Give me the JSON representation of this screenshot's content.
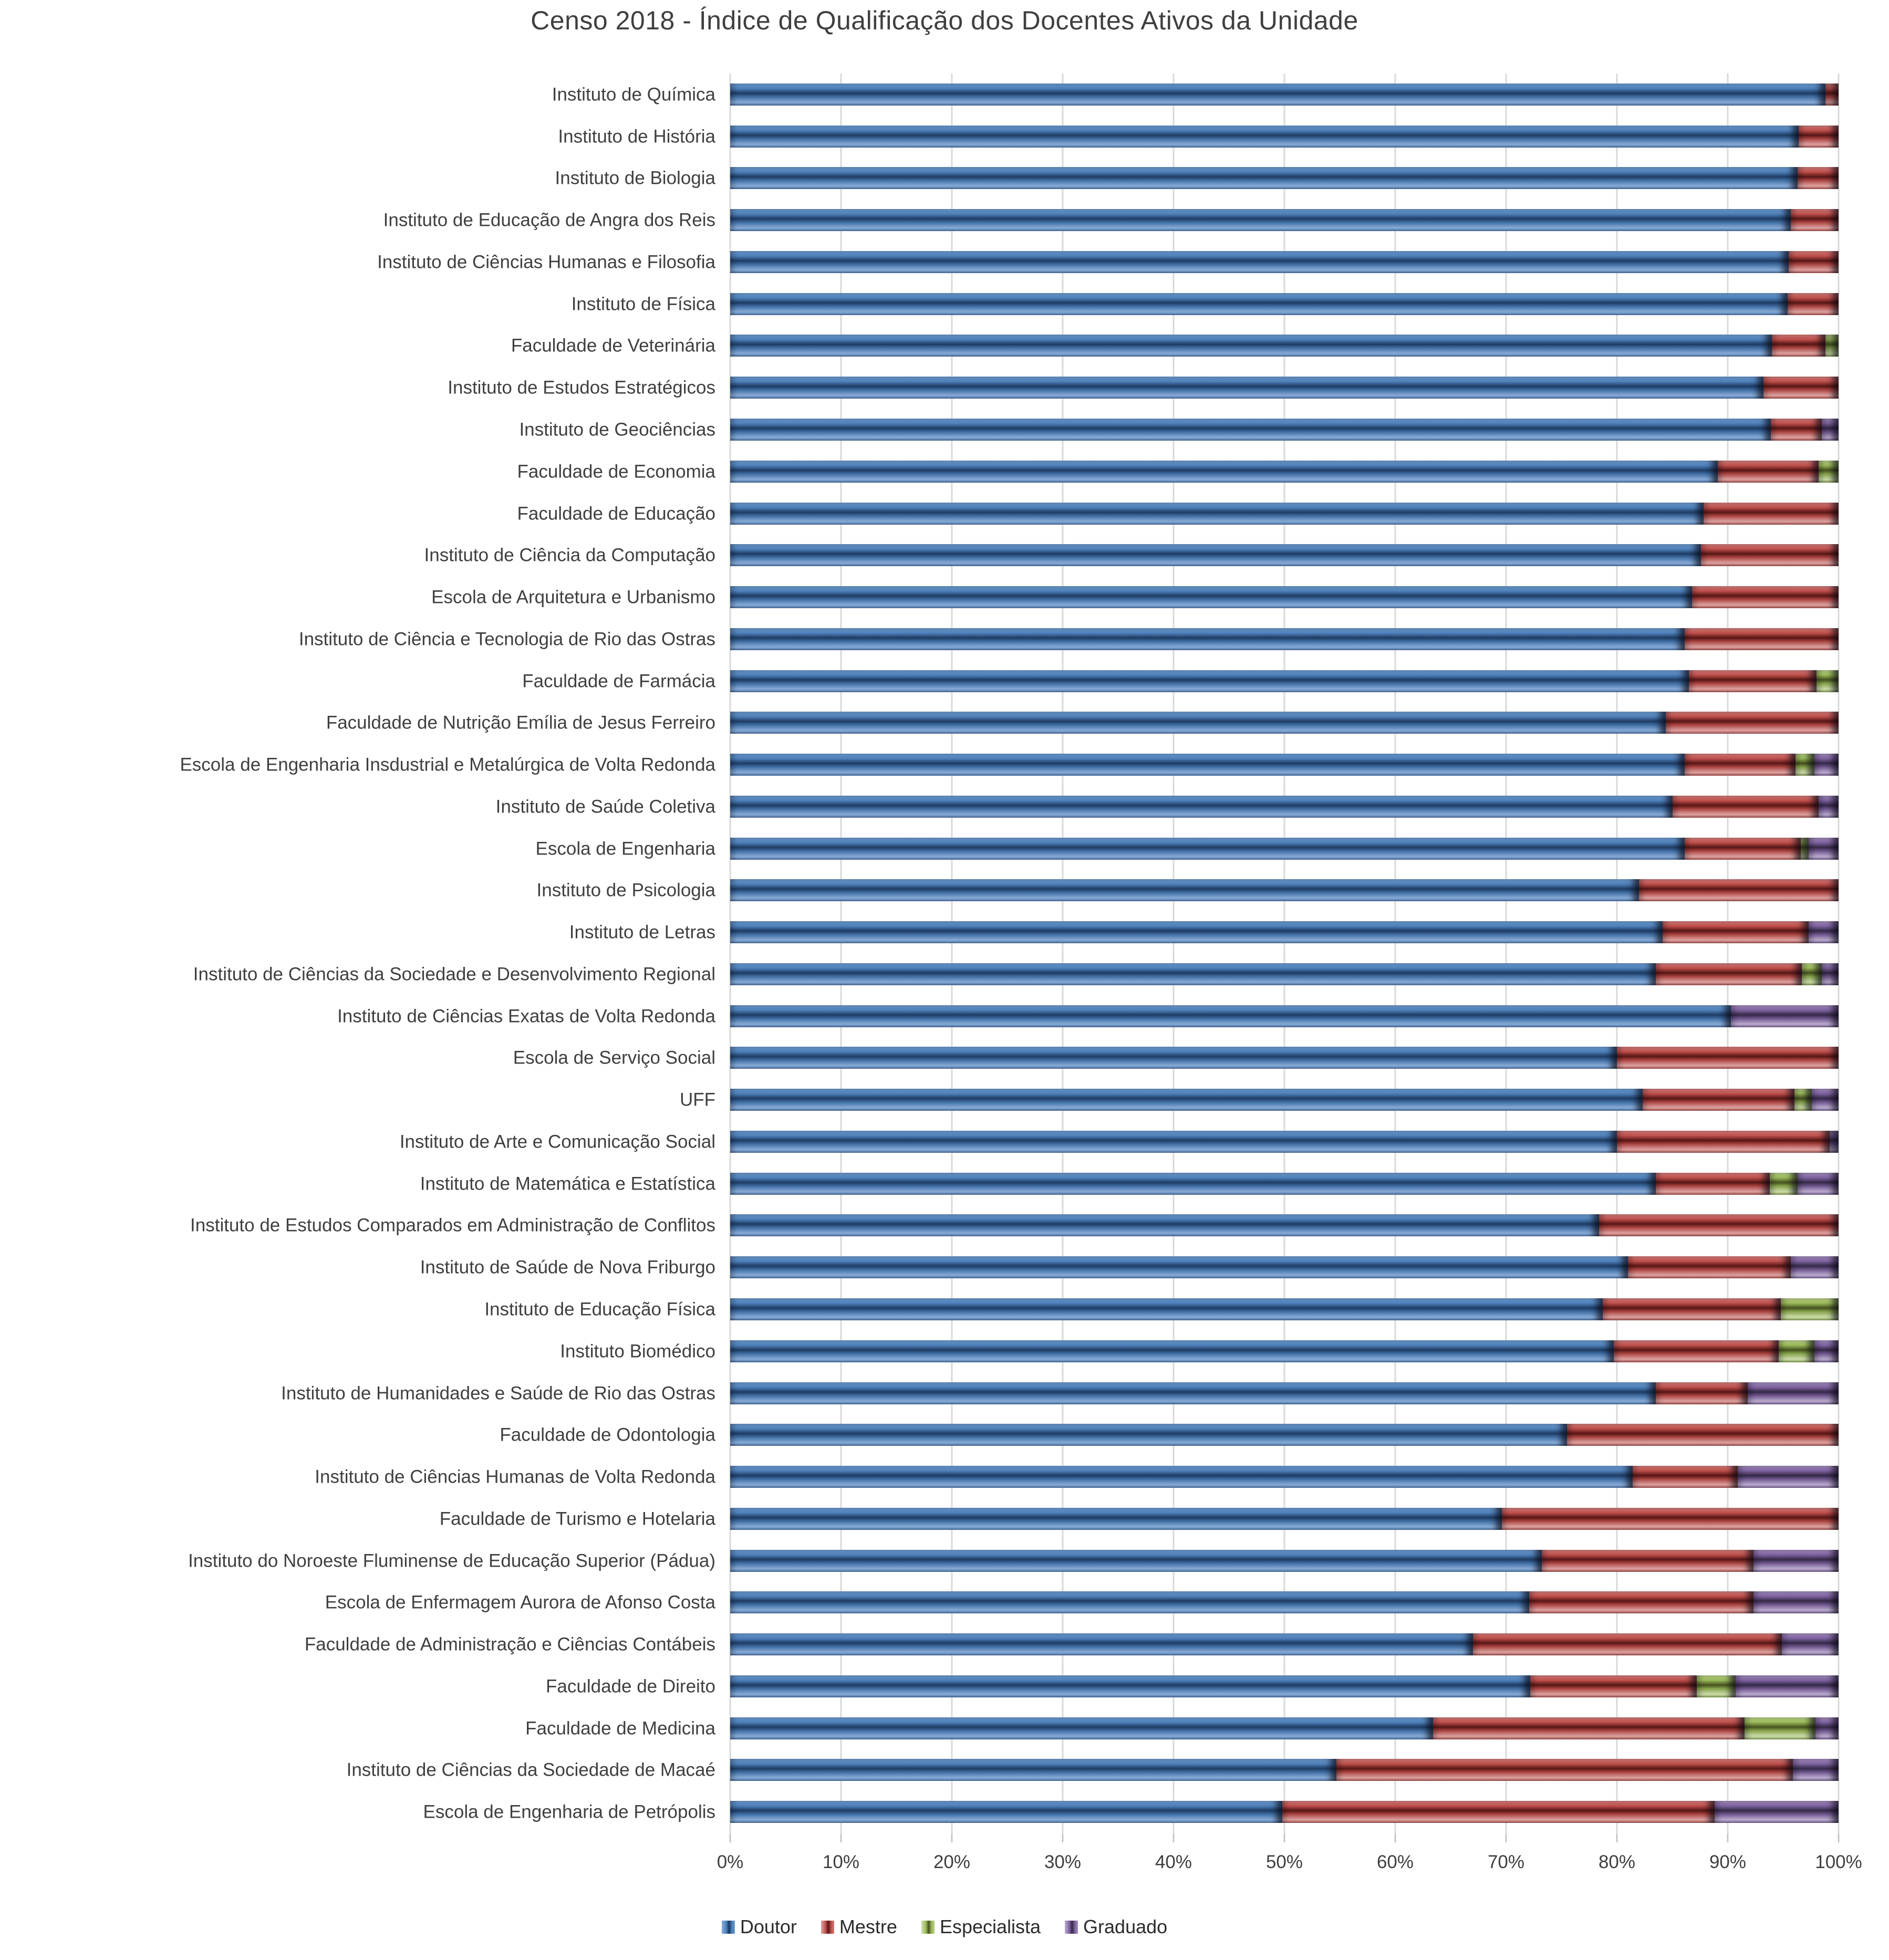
{
  "title": "Censo 2018 - Índice de Qualificação dos Docentes Ativos da Unidade",
  "colors": {
    "doutor": "#4F81BD",
    "mestre": "#C0504D",
    "especialista": "#9BBB59",
    "graduado": "#8064A2",
    "gridline": "#D9D9D9",
    "text": "#3F3F3F",
    "background": "#FFFFFF"
  },
  "axis": {
    "min": 0,
    "max": 100,
    "tick_labels": [
      "0%",
      "10%",
      "20%",
      "30%",
      "40%",
      "50%",
      "60%",
      "70%",
      "80%",
      "90%",
      "100%"
    ]
  },
  "legend": [
    {
      "label": "Doutor",
      "color": "#4F81BD"
    },
    {
      "label": "Mestre",
      "color": "#C0504D"
    },
    {
      "label": "Especialista",
      "color": "#9BBB59"
    },
    {
      "label": "Graduado",
      "color": "#8064A2"
    }
  ],
  "chart_data": {
    "type": "bar",
    "stacked": true,
    "orientation": "horizontal",
    "title": "Censo 2018 - Índice de Qualificação dos Docentes Ativos da Unidade",
    "xlabel": "",
    "ylabel": "",
    "xlim": [
      0,
      100
    ],
    "x_tick_labels": [
      "0%",
      "10%",
      "20%",
      "30%",
      "40%",
      "50%",
      "60%",
      "70%",
      "80%",
      "90%",
      "100%"
    ],
    "grid": true,
    "legend_position": "bottom",
    "units": "percent",
    "categories": [
      "Instituto de Química",
      "Instituto de História",
      "Instituto de Biologia",
      "Instituto de Educação de Angra dos Reis",
      "Instituto de Ciências Humanas e Filosofia",
      "Instituto de Física",
      "Faculdade de Veterinária",
      "Instituto de Estudos Estratégicos",
      "Instituto de Geociências",
      "Faculdade de Economia",
      "Faculdade de Educação",
      "Instituto de Ciência da Computação",
      "Escola de Arquitetura e Urbanismo",
      "Instituto de Ciência e Tecnologia de Rio das Ostras",
      "Faculdade de Farmácia",
      "Faculdade de Nutrição Emília de Jesus Ferreiro",
      "Escola de Engenharia Insdustrial e Metalúrgica de Volta Redonda",
      "Instituto de Saúde Coletiva",
      "Escola de Engenharia",
      "Instituto de Psicologia",
      "Instituto de Letras",
      "Instituto de Ciências da Sociedade e Desenvolvimento Regional",
      "Instituto de Ciências Exatas de Volta Redonda",
      "Escola de Serviço Social",
      "UFF",
      "Instituto de Arte e Comunicação Social",
      "Instituto de Matemática e Estatística",
      "Instituto de Estudos Comparados em Administração de Conflitos",
      "Instituto de Saúde de Nova Friburgo",
      "Instituto de Educação Física",
      "Instituto Biomédico",
      "Instituto de Humanidades e Saúde de Rio das Ostras",
      "Faculdade de Odontologia",
      "Instituto de Ciências Humanas de Volta Redonda",
      "Faculdade de Turismo e Hotelaria",
      "Instituto do Noroeste Fluminense de Educação Superior (Pádua)",
      "Escola de Enfermagem Aurora de Afonso Costa",
      "Faculdade de Administração e Ciências Contábeis",
      "Faculdade de Direito",
      "Faculdade de Medicina",
      "Instituto de Ciências da Sociedade de Macaé",
      "Escola de Engenharia de Petrópolis"
    ],
    "series": [
      {
        "name": "Doutor",
        "color": "#4F81BD",
        "values": [
          98.8,
          96.4,
          96.3,
          95.7,
          95.5,
          95.4,
          94.0,
          93.2,
          93.9,
          89.1,
          87.8,
          87.6,
          86.8,
          86.1,
          86.5,
          84.4,
          86.1,
          85.0,
          86.1,
          82.0,
          84.1,
          83.5,
          90.3,
          80.0,
          82.3,
          80.0,
          83.5,
          78.4,
          81.0,
          78.7,
          79.7,
          83.5,
          75.5,
          81.4,
          69.6,
          73.2,
          72.1,
          67.0,
          72.2,
          63.4,
          54.7,
          49.8
        ]
      },
      {
        "name": "Mestre",
        "color": "#C0504D",
        "values": [
          1.2,
          3.6,
          3.7,
          4.3,
          4.5,
          4.6,
          4.8,
          6.8,
          4.6,
          9.1,
          12.2,
          12.4,
          13.2,
          13.9,
          11.5,
          15.6,
          10.0,
          13.2,
          10.5,
          18.0,
          13.2,
          13.2,
          0,
          20.0,
          13.7,
          19.2,
          10.3,
          21.6,
          14.7,
          16.1,
          14.9,
          8.3,
          24.5,
          9.5,
          30.4,
          19.1,
          20.2,
          27.9,
          15.0,
          28.1,
          41.2,
          39.0
        ]
      },
      {
        "name": "Especialista",
        "color": "#9BBB59",
        "values": [
          0,
          0,
          0,
          0,
          0,
          0,
          1.2,
          0,
          0,
          1.8,
          0,
          0,
          0,
          0,
          2.0,
          0,
          1.7,
          0,
          0.7,
          0,
          0,
          1.8,
          0,
          0,
          1.6,
          0,
          2.5,
          0,
          0,
          5.2,
          3.2,
          0,
          0,
          0,
          0,
          0,
          0,
          0,
          3.5,
          6.4,
          0,
          0
        ]
      },
      {
        "name": "Graduado",
        "color": "#8064A2",
        "values": [
          0,
          0,
          0,
          0,
          0,
          0,
          0,
          0,
          1.5,
          0,
          0,
          0,
          0,
          0,
          0,
          0,
          2.2,
          1.8,
          2.7,
          0,
          2.7,
          1.5,
          9.7,
          0,
          2.4,
          0.8,
          3.7,
          0,
          4.3,
          0,
          2.2,
          8.2,
          0,
          9.1,
          0,
          7.7,
          7.7,
          5.1,
          9.3,
          2.1,
          4.1,
          11.2
        ]
      }
    ]
  }
}
